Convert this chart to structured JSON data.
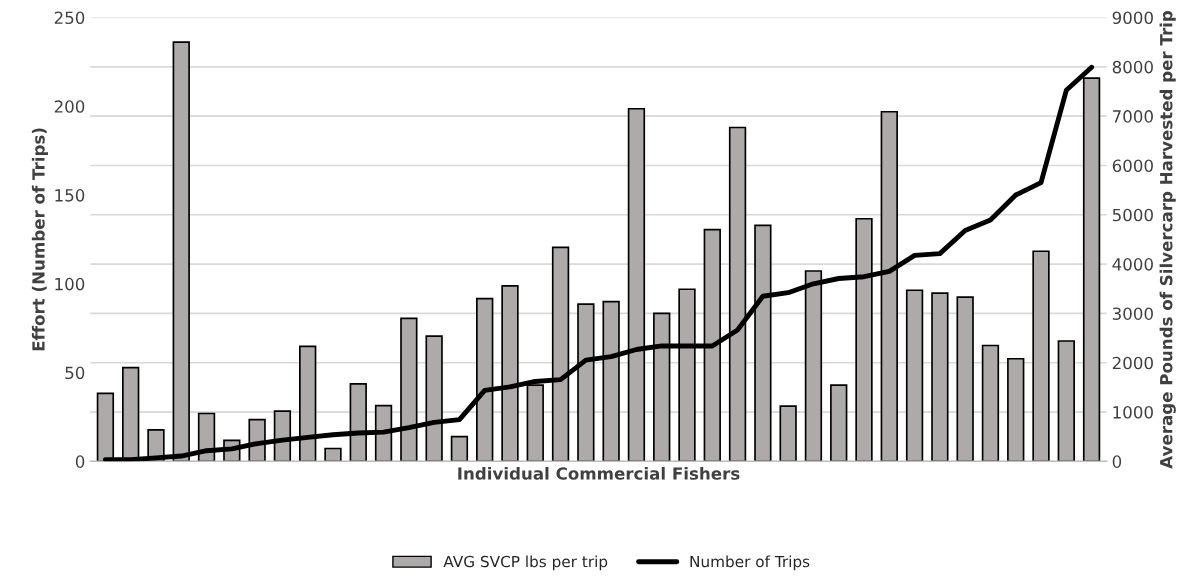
{
  "chart_data": {
    "type": "bar",
    "xlabel": "Individual Commercial Fishers",
    "ylabel": "Effort (Number of Trips)",
    "y2label": "Average Pounds of Silvercarp Harvested per Trip",
    "categories": [
      null,
      null,
      null,
      null,
      null,
      null,
      null,
      null,
      null,
      null,
      null,
      null,
      null,
      null,
      null,
      null,
      null,
      null,
      null,
      null,
      null,
      null,
      null,
      null,
      null,
      null,
      null,
      null,
      null,
      null,
      null,
      null,
      null,
      null,
      null,
      null,
      null,
      null,
      null,
      null
    ],
    "series": [
      {
        "name": "AVG SVCP lbs per trip",
        "axis": "y2",
        "color": "#aeaaaa",
        "values": [
          1380,
          1900,
          640,
          8500,
          970,
          425,
          845,
          1020,
          2330,
          260,
          1570,
          1130,
          2900,
          2540,
          500,
          3300,
          3560,
          1545,
          4340,
          3190,
          3240,
          7150,
          3000,
          3490,
          4700,
          6770,
          4785,
          1120,
          3860,
          1545,
          4920,
          7090,
          3470,
          3410,
          3330,
          2350,
          2080,
          4260,
          2440,
          7770
        ]
      },
      {
        "name": "Number of Trips",
        "type": "line",
        "color": "#000000",
        "values": [
          1,
          1,
          2,
          3,
          6,
          7,
          10,
          12,
          13.5,
          15,
          16,
          16.5,
          19,
          22,
          23.5,
          40,
          42,
          45,
          46,
          57,
          59,
          63,
          65,
          65,
          65,
          74,
          93,
          95,
          100,
          103,
          104,
          107,
          116,
          117,
          130,
          136,
          150,
          157,
          209,
          222
        ]
      }
    ],
    "ylim": [
      0,
      250
    ],
    "yticks": [
      0,
      50,
      100,
      150,
      200,
      250
    ],
    "y2lim": [
      0,
      9000
    ],
    "y2ticks": [
      0,
      1000,
      2000,
      3000,
      4000,
      5000,
      6000,
      7000,
      8000,
      9000
    ],
    "grid": "y",
    "legend": "bottom",
    "tick_labels": "y"
  }
}
